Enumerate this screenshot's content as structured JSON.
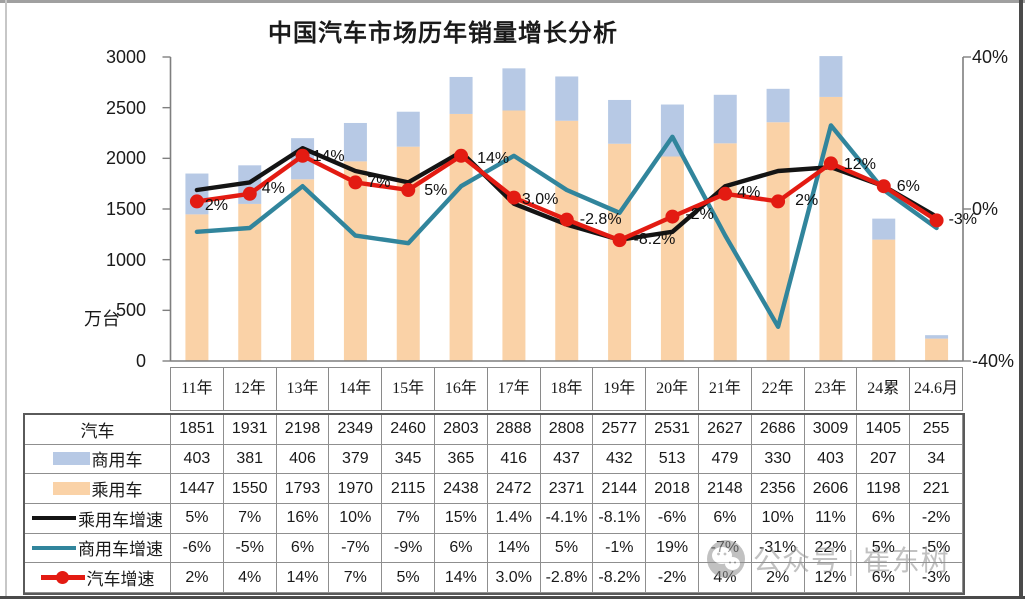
{
  "chart_data": {
    "type": "combo-stacked-bar-line",
    "title": "中国汽车市场历年销量增长分析",
    "categories": [
      "11年",
      "12年",
      "13年",
      "14年",
      "15年",
      "16年",
      "17年",
      "18年",
      "19年",
      "20年",
      "21年",
      "22年",
      "23年",
      "24累",
      "24.6月"
    ],
    "left_axis": {
      "label": "万台",
      "min": 0,
      "max": 3000,
      "ticks": [
        3000,
        2500,
        2000,
        1500,
        1000,
        500,
        0
      ]
    },
    "right_axis": {
      "min": -40,
      "max": 40,
      "ticks": [
        {
          "label": "40%",
          "value": 40
        },
        {
          "label": "0%",
          "value": 0
        },
        {
          "label": "-40%",
          "value": -40
        }
      ]
    },
    "bar_series": [
      {
        "name": "乘用车",
        "color_key": "bar_passenger",
        "values": [
          1447,
          1550,
          1793,
          1970,
          2115,
          2438,
          2472,
          2371,
          2144,
          2018,
          2148,
          2356,
          2606,
          1198,
          221
        ]
      },
      {
        "name": "商用车",
        "color_key": "bar_commercial",
        "values": [
          403,
          381,
          406,
          379,
          345,
          365,
          416,
          437,
          432,
          513,
          479,
          330,
          403,
          207,
          34
        ]
      }
    ],
    "line_series": [
      {
        "name": "商用车增速",
        "color_key": "line_commercial_growth",
        "marker": false,
        "show_labels": false,
        "values": [
          -6,
          -5,
          6,
          -7,
          -9,
          6,
          14,
          5,
          -1,
          19,
          -7,
          -31,
          22,
          5,
          -5
        ]
      },
      {
        "name": "乘用车增速",
        "color_key": "line_passenger_growth",
        "marker": false,
        "show_labels": false,
        "values": [
          5,
          7,
          16,
          10,
          7,
          15,
          1.4,
          -4.1,
          -8.1,
          -6,
          6,
          10,
          11,
          6,
          -2
        ]
      },
      {
        "name": "汽车增速",
        "color_key": "line_auto_growth",
        "marker": true,
        "show_labels": true,
        "values": [
          2,
          4,
          14,
          7,
          5,
          14,
          3.0,
          -2.8,
          -8.2,
          -2,
          4,
          2,
          12,
          6,
          -3
        ],
        "point_labels": [
          "2%",
          "4%",
          "14%",
          "7%",
          "5%",
          "14%",
          "3.0%",
          "-2.8%",
          "-8.2%",
          "-2%",
          "4%",
          "2%",
          "12%",
          "6%",
          "-3%"
        ]
      }
    ],
    "totals": {
      "name": "汽车",
      "values": [
        1851,
        1931,
        2198,
        2349,
        2460,
        2803,
        2888,
        2808,
        2577,
        2531,
        2627,
        2686,
        3009,
        1405,
        255
      ]
    }
  },
  "table": {
    "rows": [
      {
        "label": "汽车",
        "swatch": "none",
        "cells": [
          "1851",
          "1931",
          "2198",
          "2349",
          "2460",
          "2803",
          "2888",
          "2808",
          "2577",
          "2531",
          "2627",
          "2686",
          "3009",
          "1405",
          "255"
        ]
      },
      {
        "label": "商用车",
        "swatch": "bar-blue",
        "cells": [
          "403",
          "381",
          "406",
          "379",
          "345",
          "365",
          "416",
          "437",
          "432",
          "513",
          "479",
          "330",
          "403",
          "207",
          "34"
        ]
      },
      {
        "label": "乘用车",
        "swatch": "bar-orange",
        "cells": [
          "1447",
          "1550",
          "1793",
          "1970",
          "2115",
          "2438",
          "2472",
          "2371",
          "2144",
          "2018",
          "2148",
          "2356",
          "2606",
          "1198",
          "221"
        ]
      },
      {
        "label": "乘用车增速",
        "swatch": "line-black",
        "cells": [
          "5%",
          "7%",
          "16%",
          "10%",
          "7%",
          "15%",
          "1.4%",
          "-4.1%",
          "-8.1%",
          "-6%",
          "6%",
          "10%",
          "11%",
          "6%",
          "-2%"
        ]
      },
      {
        "label": "商用车增速",
        "swatch": "line-teal",
        "cells": [
          "-6%",
          "-5%",
          "6%",
          "-7%",
          "-9%",
          "6%",
          "14%",
          "5%",
          "-1%",
          "19%",
          "-7%",
          "-31%",
          "22%",
          "5%",
          "-5%"
        ]
      },
      {
        "label": "汽车增速",
        "swatch": "line-red",
        "cells": [
          "2%",
          "4%",
          "14%",
          "7%",
          "5%",
          "14%",
          "3.0%",
          "-2.8%",
          "-8.2%",
          "-2%",
          "4%",
          "2%",
          "12%",
          "6%",
          "-3%"
        ]
      }
    ]
  },
  "watermark": {
    "icon": "wechat-icon",
    "text": "公众号 | 崔东树"
  },
  "colors": {
    "bar_commercial": "#b7c9e5",
    "bar_passenger": "#fad2a7",
    "line_passenger_growth": "#141414",
    "line_commercial_growth": "#31859c",
    "line_auto_growth": "#e31b12",
    "axis": "#7f7f7f"
  }
}
